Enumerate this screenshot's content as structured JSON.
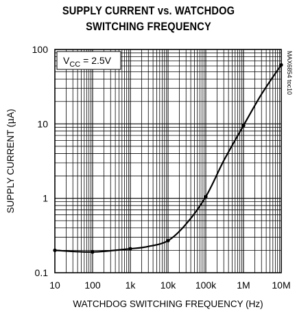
{
  "chart_data": {
    "type": "line",
    "title_line1": "SUPPLY CURRENT vs. WATCHDOG",
    "title_line2": "SWITCHING FREQUENCY",
    "xlabel": "WATCHDOG SWITCHING FREQUENCY (Hz)",
    "ylabel_prefix": "SUPPLY CURRENT (",
    "ylabel_mu": "μ",
    "ylabel_suffix": "A)",
    "x_scale": "log",
    "y_scale": "log",
    "xlim": [
      10,
      10000000
    ],
    "ylim": [
      0.1,
      100
    ],
    "x_ticks": [
      10,
      100,
      1000,
      10000,
      100000,
      1000000,
      10000000
    ],
    "x_tick_labels": [
      "10",
      "100",
      "1k",
      "10k",
      "100k",
      "1M",
      "10M"
    ],
    "y_ticks": [
      0.1,
      1,
      10,
      100
    ],
    "y_tick_labels": [
      "0.1",
      "1",
      "10",
      "100"
    ],
    "grid": true,
    "annotation": {
      "prefix": "V",
      "subscript": "CC",
      "suffix": " = 2.5V"
    },
    "side_text": "MAX6854 toc10",
    "series": [
      {
        "x": [
          10,
          100,
          1000,
          3000,
          10000,
          30000,
          100000,
          300000,
          1000000,
          3000000,
          10000000
        ],
        "y": [
          0.2,
          0.19,
          0.21,
          0.225,
          0.27,
          0.45,
          1.05,
          3.2,
          9.5,
          25,
          62
        ],
        "markers_x": [
          10,
          100,
          1000,
          10000,
          100000,
          1000000,
          10000000
        ],
        "markers_y": [
          0.2,
          0.19,
          0.21,
          0.27,
          1.05,
          9.5,
          62
        ]
      }
    ]
  }
}
